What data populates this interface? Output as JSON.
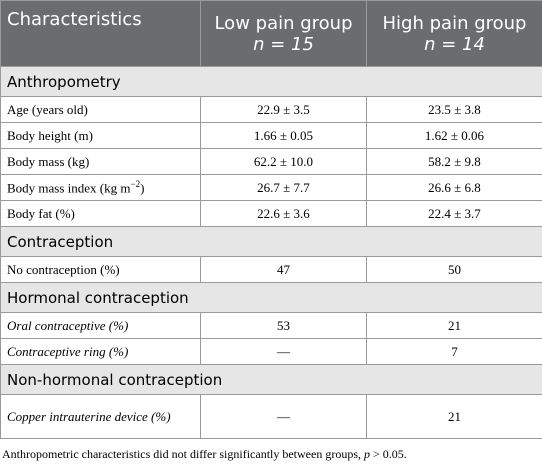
{
  "table": {
    "header": [
      {
        "title": "Characteristics"
      },
      {
        "title": "Low pain group",
        "n": "n = 15"
      },
      {
        "title": "High pain group",
        "n": "n = 14"
      }
    ],
    "sections": [
      {
        "title": "Anthropometry",
        "rows": [
          {
            "label": [
              "Age (years old)"
            ],
            "cells": [
              "22.9 ± 3.5",
              "23.5 ± 3.8"
            ]
          },
          {
            "label": [
              "Body height (m)"
            ],
            "cells": [
              "1.66 ± 0.05",
              "1.62 ± 0.06"
            ]
          },
          {
            "label": [
              "Body mass (kg)"
            ],
            "cells": [
              "62.2 ± 10.0",
              "58.2 ± 9.8"
            ]
          },
          {
            "label": [
              "Body mass index (kg m",
              "−2",
              ")"
            ],
            "cells": [
              "26.7 ± 7.7",
              "26.6 ± 6.8"
            ]
          },
          {
            "label": [
              "Body fat (%)"
            ],
            "cells": [
              "22.6 ± 3.6",
              "22.4 ± 3.7"
            ]
          }
        ]
      },
      {
        "title": "Contraception",
        "rows": [
          {
            "label": [
              "No contraception (%)"
            ],
            "cells": [
              "47",
              "50"
            ]
          }
        ]
      },
      {
        "title": "Hormonal contraception",
        "rows": [
          {
            "label": [
              "Oral contraceptive (%)"
            ],
            "cells": [
              "53",
              "21"
            ],
            "italic": true
          },
          {
            "label": [
              "Contraceptive ring (%)"
            ],
            "cells": [
              "—",
              "7"
            ],
            "italic": true
          }
        ]
      },
      {
        "title": "Non-hormonal contraception",
        "rows": [
          {
            "label": [
              "Copper intrauterine device (%)"
            ],
            "cells": [
              "—",
              "21"
            ],
            "italic": true,
            "tall": true
          }
        ]
      }
    ],
    "footnote": [
      "Anthropometric characteristics did not differ significantly between groups, ",
      "p",
      " > 0.05."
    ]
  }
}
